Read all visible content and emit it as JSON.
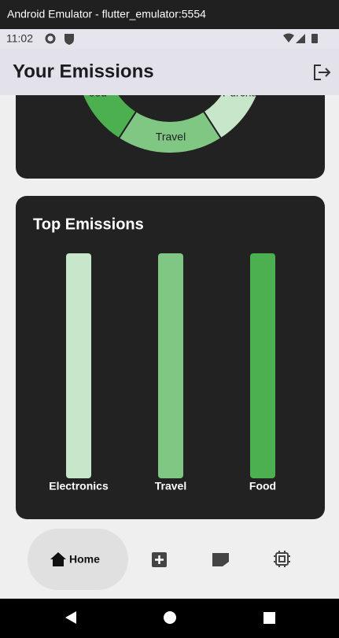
{
  "window": {
    "title": "Android Emulator - flutter_emulator:5554"
  },
  "status_bar": {
    "time": "11:02"
  },
  "app_bar": {
    "title": "Your Emissions"
  },
  "breakdown": {
    "labels": [
      "Food",
      "Travel",
      "Purchases"
    ]
  },
  "top_emissions": {
    "title": "Top Emissions",
    "labels": [
      "Electronics",
      "Travel",
      "Food"
    ]
  },
  "bottom_nav": {
    "home": "Home"
  }
}
